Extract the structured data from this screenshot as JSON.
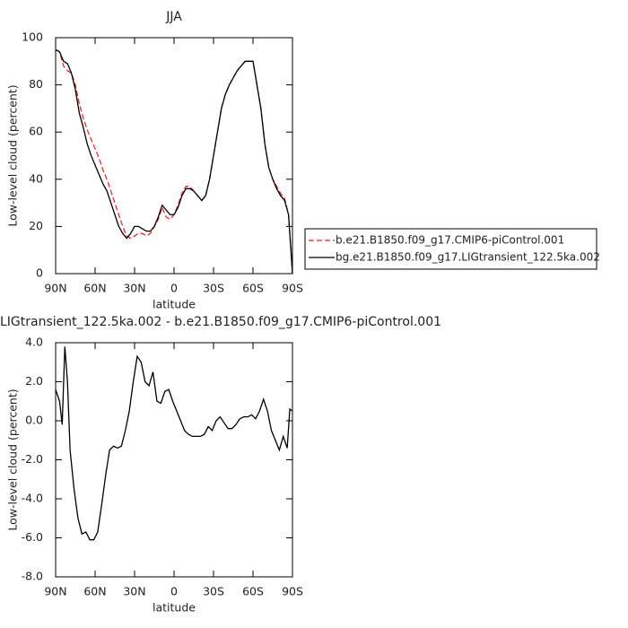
{
  "chart_data": [
    {
      "type": "line",
      "title": "JJA",
      "xlabel": "latitude",
      "ylabel": "Low-level cloud (percent)",
      "xlim": [
        90,
        -90
      ],
      "ylim": [
        0,
        100
      ],
      "xticks": [
        {
          "value": 90,
          "label": "90N"
        },
        {
          "value": 60,
          "label": "60N"
        },
        {
          "value": 30,
          "label": "30N"
        },
        0,
        {
          "value": -30,
          "label": "30S"
        },
        {
          "value": -60,
          "label": "60S"
        },
        {
          "value": -90,
          "label": "90S"
        }
      ],
      "yticks": [
        0,
        20,
        40,
        60,
        80,
        100
      ],
      "legend": "right",
      "x": [
        90,
        87,
        84,
        81,
        78,
        75,
        72,
        69,
        66,
        63,
        60,
        57,
        54,
        51,
        48,
        45,
        42,
        39,
        36,
        33,
        30,
        27,
        24,
        21,
        18,
        15,
        12,
        9,
        6,
        3,
        0,
        -3,
        -6,
        -9,
        -12,
        -15,
        -18,
        -21,
        -24,
        -27,
        -30,
        -33,
        -36,
        -39,
        -42,
        -45,
        -48,
        -51,
        -54,
        -57,
        -60,
        -63,
        -66,
        -69,
        -72,
        -75,
        -78,
        -81,
        -84,
        -87,
        -90
      ],
      "series": [
        {
          "name": "b.e21.B1850.f09_g17.CMIP6-piControl.001",
          "color": "#e8282a",
          "dash": true,
          "values": [
            95,
            94,
            88,
            86,
            85,
            80,
            72,
            66,
            61,
            57,
            53,
            49,
            44,
            40,
            35,
            30,
            25,
            20,
            16,
            15,
            16,
            17,
            17,
            16,
            17,
            20,
            23,
            28,
            24,
            23,
            25,
            29,
            34,
            37,
            37,
            35,
            33,
            31,
            33,
            40,
            50,
            60,
            70,
            76,
            80,
            83,
            86,
            88,
            90,
            90,
            90,
            80,
            70,
            55,
            45,
            40,
            37,
            34,
            32,
            25,
            0
          ]
        },
        {
          "name": "bg.e21.B1850.f09_g17.LIGtransient_122.5ka.002",
          "color": "#000000",
          "dash": false,
          "values": [
            95,
            94,
            90,
            89,
            85,
            78,
            68,
            62,
            55,
            50,
            46,
            42,
            38,
            35,
            30,
            25,
            20,
            17,
            15,
            17,
            20,
            20,
            19,
            18,
            18,
            20,
            24,
            29,
            27,
            25,
            25,
            28,
            33,
            36,
            36,
            35,
            33,
            31,
            33,
            40,
            50,
            60,
            70,
            76,
            80,
            83,
            86,
            88,
            90,
            90,
            90,
            80,
            70,
            55,
            45,
            40,
            36,
            33,
            31,
            25,
            0
          ]
        }
      ]
    },
    {
      "type": "line",
      "title": "LIGtransient_122.5ka.002 - b.e21.B1850.f09_g17.CMIP6-piControl.001",
      "xlabel": "latitude",
      "ylabel": "Low-level cloud (percent)",
      "xlim": [
        90,
        -90
      ],
      "ylim": [
        -8,
        4
      ],
      "xticks": [
        {
          "value": 90,
          "label": "90N"
        },
        {
          "value": 60,
          "label": "60N"
        },
        {
          "value": 30,
          "label": "30N"
        },
        0,
        {
          "value": -30,
          "label": "30S"
        },
        {
          "value": -60,
          "label": "60S"
        },
        {
          "value": -90,
          "label": "90S"
        }
      ],
      "yticks": [
        {
          "value": 4,
          "label": "4.0"
        },
        {
          "value": 2,
          "label": "2.0"
        },
        {
          "value": 0,
          "label": "0.0"
        },
        {
          "value": -2,
          "label": "-2.0"
        },
        {
          "value": -4,
          "label": "-4.0"
        },
        {
          "value": -6,
          "label": "-6.0"
        },
        {
          "value": -8,
          "label": "-8.0"
        }
      ],
      "x": [
        90,
        87,
        85,
        83,
        81,
        79,
        76,
        73,
        70,
        67,
        64,
        61,
        58,
        55,
        52,
        49,
        46,
        43,
        40,
        37,
        34,
        31,
        28,
        25,
        22,
        19,
        16,
        13,
        10,
        7,
        4,
        1,
        -2,
        -5,
        -8,
        -11,
        -14,
        -17,
        -20,
        -23,
        -26,
        -29,
        -32,
        -35,
        -38,
        -41,
        -44,
        -47,
        -50,
        -53,
        -56,
        -59,
        -62,
        -65,
        -68,
        -71,
        -74,
        -77,
        -80,
        -83,
        -86,
        -88,
        -90
      ],
      "series": [
        {
          "color": "#000000",
          "values": [
            1.6,
            1.0,
            -0.2,
            3.8,
            2.0,
            -1.5,
            -3.5,
            -5.0,
            -5.8,
            -5.7,
            -6.1,
            -6.1,
            -5.7,
            -4.3,
            -2.8,
            -1.5,
            -1.3,
            -1.4,
            -1.3,
            -0.5,
            0.5,
            2.0,
            3.3,
            3.0,
            2.0,
            1.8,
            2.5,
            1.0,
            0.9,
            1.5,
            1.6,
            1.0,
            0.5,
            0.0,
            -0.5,
            -0.7,
            -0.8,
            -0.8,
            -0.8,
            -0.7,
            -0.3,
            -0.5,
            0.0,
            0.2,
            -0.1,
            -0.4,
            -0.4,
            -0.2,
            0.1,
            0.2,
            0.2,
            0.3,
            0.1,
            0.5,
            1.1,
            0.5,
            -0.5,
            -1.0,
            -1.5,
            -0.8,
            -1.4,
            0.6,
            0.5
          ]
        }
      ]
    }
  ]
}
